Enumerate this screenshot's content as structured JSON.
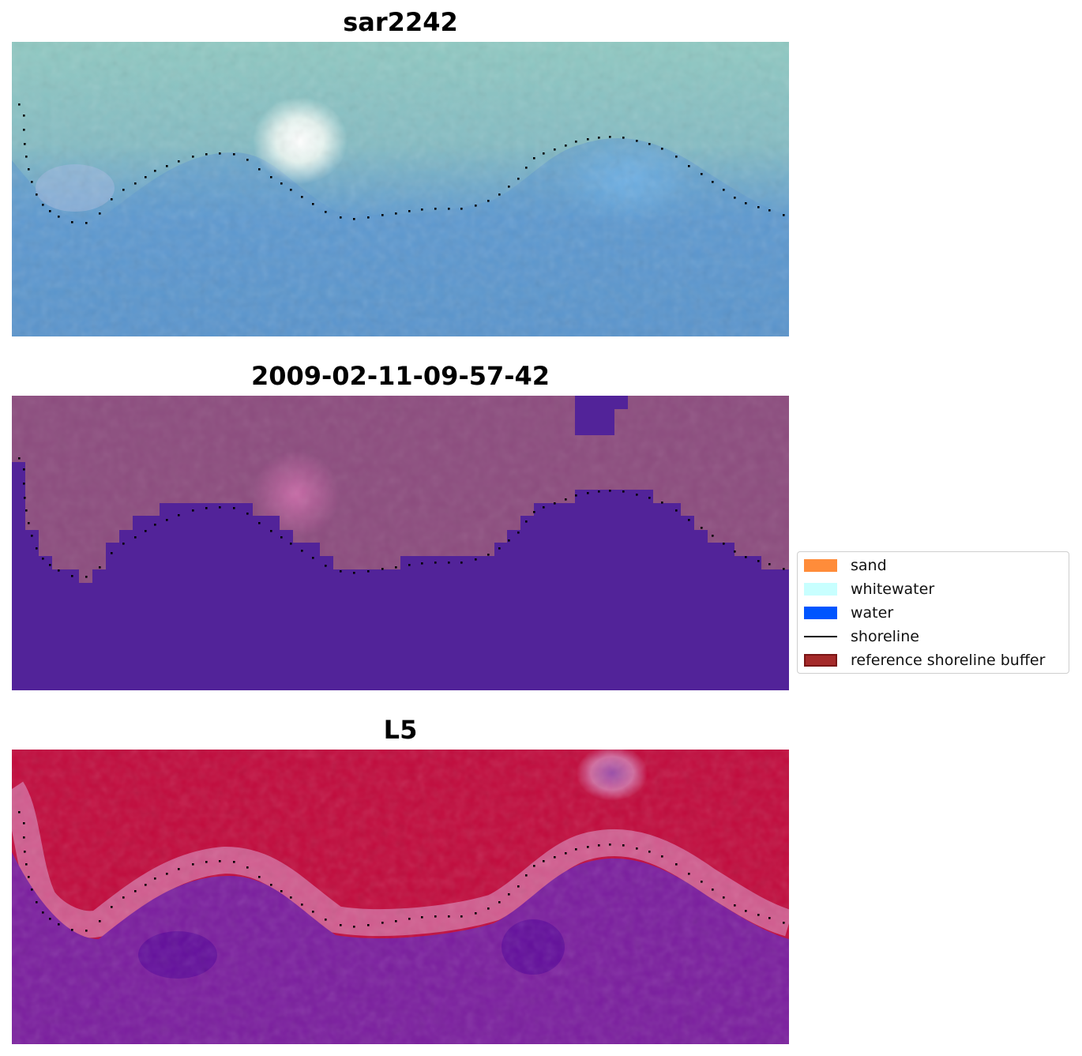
{
  "panels": [
    {
      "title": "sar2242",
      "overlay": "rgb-composite"
    },
    {
      "title": "2009-02-11-09-57-42",
      "overlay": "classified-water-mask"
    },
    {
      "title": "L5",
      "overlay": "index-heatmap"
    }
  ],
  "legend": {
    "items": [
      {
        "label": "sand",
        "color": "#ff8c3a",
        "kind": "patch"
      },
      {
        "label": "whitewater",
        "color": "#c8ffff",
        "kind": "patch"
      },
      {
        "label": "water",
        "color": "#0055ff",
        "kind": "patch"
      },
      {
        "label": "shoreline",
        "color": "#000000",
        "kind": "line"
      },
      {
        "label": "reference shoreline buffer",
        "color": "#a52a2a",
        "kind": "patch"
      }
    ]
  }
}
